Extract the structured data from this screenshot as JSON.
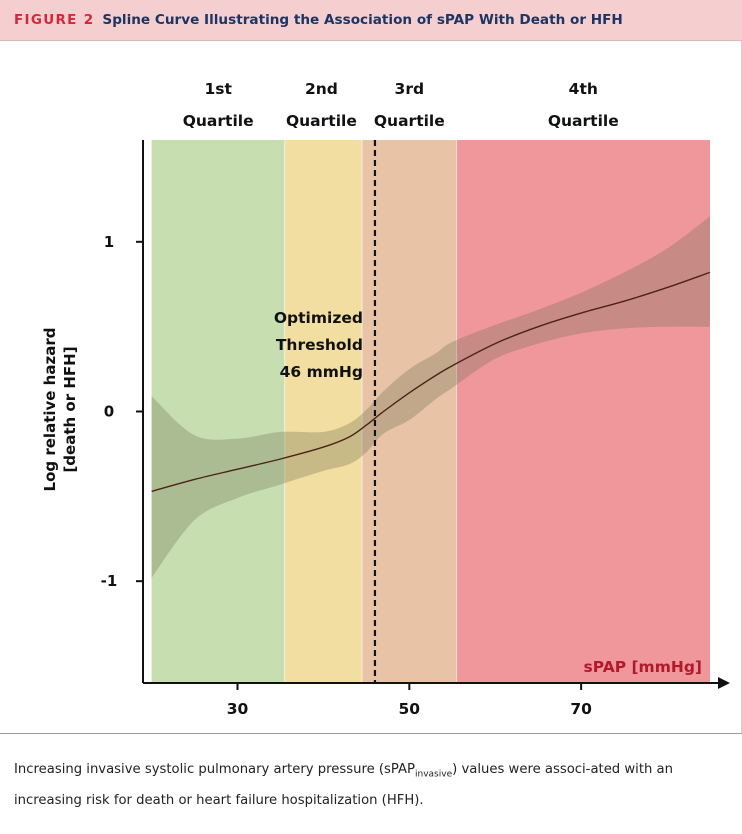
{
  "figure": {
    "label": "FIGURE 2",
    "title": "Spline Curve Illustrating the Association of sPAP With Death or HFH"
  },
  "caption": {
    "part1": "Increasing invasive systolic pulmonary artery pressure (sPAP",
    "sub": "invasive",
    "part2": ") values were associ-ated with an increasing risk for death or heart failure hospitalization (HFH)."
  },
  "colors": {
    "q1": "#c7dfb0",
    "q2": "#f2dea0",
    "q3": "#e9c3a6",
    "q4": "#f0979c",
    "band": "#6f6f55",
    "curve": "#4b2418",
    "xlabel": "#b11a2b"
  },
  "chart_data": {
    "type": "line",
    "title": "",
    "xlabel": "sPAP [mmHg]",
    "ylabel_lines": [
      "Log relative hazard",
      "[death or HFH]"
    ],
    "xlim": [
      19,
      85
    ],
    "ylim": [
      -1.6,
      1.6
    ],
    "xticks": [
      30,
      50,
      70
    ],
    "yticks": [
      {
        "value": 1,
        "label": "1"
      },
      {
        "value": 0,
        "label": "0"
      },
      {
        "value": -1,
        "label": "-1"
      }
    ],
    "quartiles": [
      {
        "line1": "1st",
        "line2": "Quartile",
        "from": 20,
        "to": 35.5
      },
      {
        "line1": "2nd",
        "line2": "Quartile",
        "from": 35.5,
        "to": 44.5
      },
      {
        "line1": "3rd",
        "line2": "Quartile",
        "from": 44.5,
        "to": 55.5
      },
      {
        "line1": "4th",
        "line2": "Quartile",
        "from": 55.5,
        "to": 85
      }
    ],
    "threshold": {
      "x": 46,
      "lines": [
        "Optimized",
        "Threshold",
        "46 mmHg"
      ]
    },
    "x": [
      20,
      25,
      30,
      35,
      40,
      43,
      45,
      47,
      50,
      53,
      55,
      60,
      65,
      70,
      75,
      80,
      85
    ],
    "estimate": [
      -0.47,
      -0.4,
      -0.34,
      -0.28,
      -0.21,
      -0.15,
      -0.08,
      0.0,
      0.11,
      0.21,
      0.27,
      0.4,
      0.5,
      0.58,
      0.65,
      0.73,
      0.82
    ],
    "lower": [
      -0.98,
      -0.64,
      -0.51,
      -0.43,
      -0.35,
      -0.31,
      -0.24,
      -0.13,
      -0.05,
      0.07,
      0.14,
      0.31,
      0.4,
      0.46,
      0.49,
      0.5,
      0.5
    ],
    "upper": [
      0.09,
      -0.14,
      -0.16,
      -0.12,
      -0.12,
      -0.07,
      0.01,
      0.12,
      0.25,
      0.34,
      0.41,
      0.51,
      0.6,
      0.7,
      0.82,
      0.96,
      1.15
    ]
  }
}
